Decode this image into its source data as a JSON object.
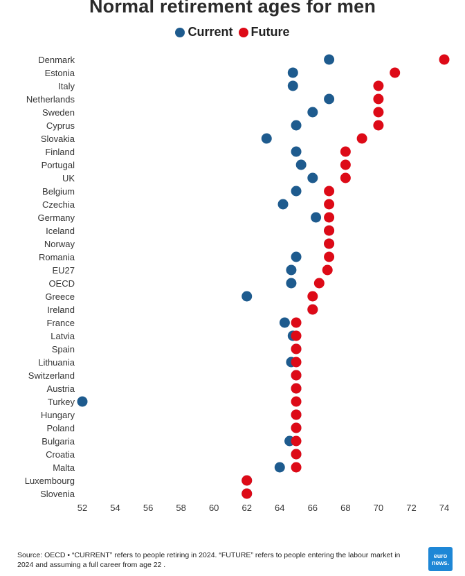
{
  "colors": {
    "current": "#1e5b8e",
    "future": "#dd0a17"
  },
  "chart_data": {
    "type": "scatter",
    "title": "Normal retirement ages for men",
    "categories": [
      "Denmark",
      "Estonia",
      "Italy",
      "Netherlands",
      "Sweden",
      "Cyprus",
      "Slovakia",
      "Finland",
      "Portugal",
      "UK",
      "Belgium",
      "Czechia",
      "Germany",
      "Iceland",
      "Norway",
      "Romania",
      "EU27",
      "OECD",
      "Greece",
      "Ireland",
      "France",
      "Latvia",
      "Spain",
      "Lithuania",
      "Switzerland",
      "Austria",
      "Turkey",
      "Hungary",
      "Poland",
      "Bulgaria",
      "Croatia",
      "Malta",
      "Luxembourg",
      "Slovenia"
    ],
    "series": [
      {
        "name": "Current",
        "values": [
          67,
          64.8,
          64.8,
          67,
          66,
          65,
          63.2,
          65,
          65.3,
          66,
          65,
          64.2,
          66.2,
          67,
          67,
          65,
          64.7,
          64.7,
          62,
          66,
          64.3,
          64.8,
          65,
          64.7,
          65,
          65,
          52,
          65,
          65,
          64.6,
          65,
          64,
          62,
          62
        ]
      },
      {
        "name": "Future",
        "values": [
          74,
          71,
          70,
          70,
          70,
          70,
          69,
          68,
          68,
          68,
          67,
          67,
          67,
          67,
          67,
          67,
          66.9,
          66.4,
          66,
          66,
          65,
          65,
          65,
          65,
          65,
          65,
          65,
          65,
          65,
          65,
          65,
          65,
          62,
          62
        ]
      }
    ],
    "xlim": [
      52,
      74
    ],
    "xticks": [
      "52",
      "54",
      "56",
      "58",
      "60",
      "62",
      "64",
      "66",
      "68",
      "70",
      "72",
      "74"
    ],
    "xlabel": "",
    "ylabel": ""
  },
  "footer": {
    "source": "Source: OECD • “CURRENT” refers to people retiring in 2024. “FUTURE” refers to people entering the labour market in 2024 and assuming a full career from age 22 ."
  },
  "logo": {
    "line1": "euro",
    "line2": "news."
  }
}
